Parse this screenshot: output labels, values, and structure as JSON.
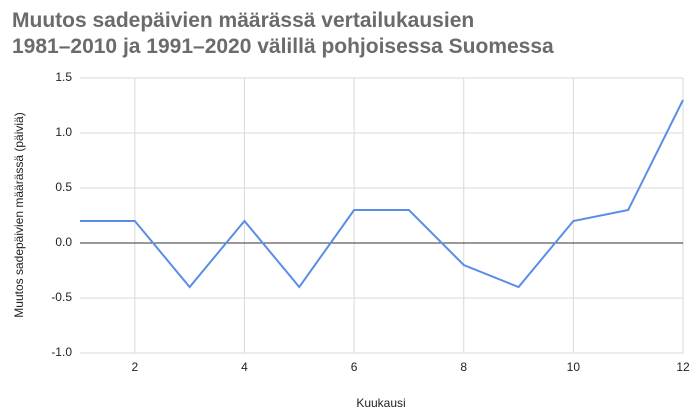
{
  "chart_data": {
    "type": "line",
    "title": [
      "Muutos sadepäivien määrässä vertailukausien",
      "1981–2010 ja 1991–2020 välillä pohjoisessa Suomessa"
    ],
    "x_label": "Kuukausi",
    "y_label": "Muutos sadepäivien määrässä (päiviä)",
    "x": [
      1,
      2,
      3,
      4,
      5,
      6,
      7,
      8,
      9,
      10,
      11,
      12
    ],
    "series": [
      {
        "name": "Muutos",
        "color": "#5a8ee6",
        "values": [
          0.2,
          0.2,
          -0.4,
          0.2,
          -0.4,
          0.3,
          0.3,
          -0.2,
          -0.4,
          0.2,
          0.3,
          1.3
        ]
      }
    ],
    "xlim": [
      1,
      12
    ],
    "xticks": [
      2,
      4,
      6,
      8,
      10,
      12
    ],
    "ylim": [
      -1,
      1.5
    ],
    "yticks": [
      {
        "value": -1,
        "label": "-1.0"
      },
      {
        "value": -0.5,
        "label": "-0.5"
      },
      {
        "value": 0,
        "label": "0.0"
      },
      {
        "value": 0.5,
        "label": "0.5"
      },
      {
        "value": 1,
        "label": "1.0"
      },
      {
        "value": 1.5,
        "label": "1.5"
      }
    ],
    "grid": true
  }
}
